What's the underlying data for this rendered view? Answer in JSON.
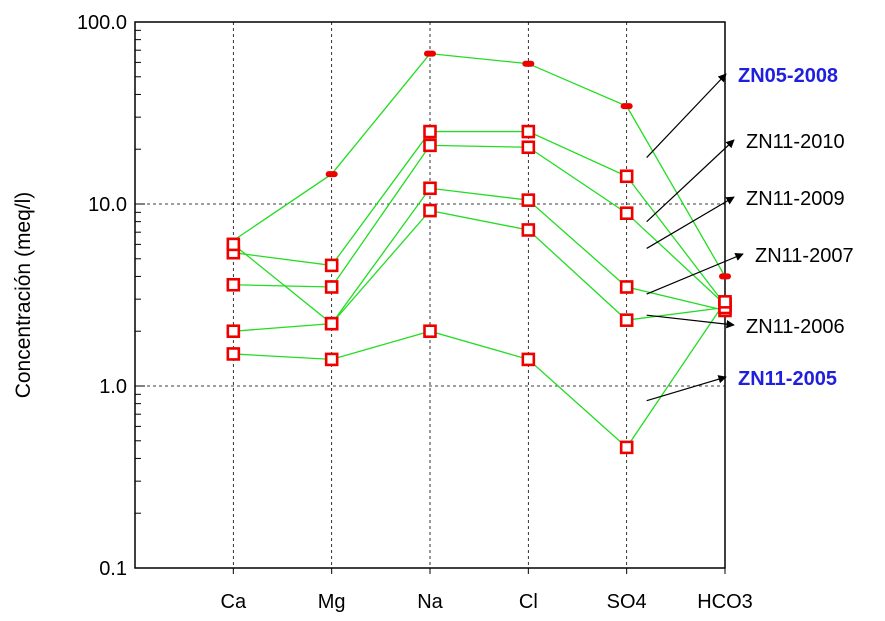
{
  "chart_data": {
    "type": "line",
    "xlabel": "",
    "ylabel": "Concentración (meq/l)",
    "yscale": "log",
    "ylim": [
      0.1,
      100
    ],
    "categories": [
      "Ca",
      "Mg",
      "Na",
      "Cl",
      "SO4",
      "HCO3"
    ],
    "ytick_labels": [
      "100.0",
      "10.0",
      "1.0",
      "0.1"
    ],
    "grid": true,
    "line_color": "#22dd22",
    "marker_color": "#ee0000",
    "series": [
      {
        "name": "ZN05-2008",
        "marker": "filled",
        "values": [
          6.3,
          14.6,
          67,
          59,
          34.5,
          4.0
        ]
      },
      {
        "name": "ZN11-2010",
        "marker": "square",
        "values": [
          5.4,
          4.6,
          25,
          25,
          14.2,
          2.8
        ]
      },
      {
        "name": "ZN11-2009",
        "marker": "square",
        "values": [
          3.6,
          3.5,
          21,
          20.5,
          8.9,
          2.8
        ]
      },
      {
        "name": "ZN11-2007",
        "marker": "square",
        "values": [
          6.0,
          2.2,
          12.2,
          10.5,
          3.5,
          2.6
        ]
      },
      {
        "name": "ZN11-2006",
        "marker": "square",
        "values": [
          2.0,
          2.2,
          9.2,
          7.2,
          2.3,
          2.7
        ]
      },
      {
        "name": "ZN11-2005",
        "marker": "square",
        "values": [
          1.5,
          1.4,
          2.0,
          1.4,
          0.46,
          2.9
        ]
      }
    ],
    "labels": [
      {
        "series": "ZN05-2008",
        "text": "ZN05-2008",
        "bold": true,
        "color": "#1f1fdd",
        "point_at": [
          "SO4",
          18
        ]
      },
      {
        "series": "ZN11-2010",
        "text": "ZN11-2010",
        "bold": false,
        "color": "#000000",
        "point_at": [
          "SO4",
          8.0
        ]
      },
      {
        "series": "ZN11-2009",
        "text": "ZN11-2009",
        "bold": false,
        "color": "#000000",
        "point_at": [
          "SO4",
          5.7
        ]
      },
      {
        "series": "ZN11-2007",
        "text": "ZN11-2007",
        "bold": false,
        "color": "#000000",
        "point_at": [
          "SO4",
          3.2
        ]
      },
      {
        "series": "ZN11-2006",
        "text": "ZN11-2006",
        "bold": false,
        "color": "#000000",
        "point_at": [
          "SO4",
          2.45
        ]
      },
      {
        "series": "ZN11-2005",
        "text": "ZN11-2005",
        "bold": true,
        "color": "#1f1fdd",
        "point_at": [
          "SO4",
          0.83
        ]
      }
    ]
  }
}
